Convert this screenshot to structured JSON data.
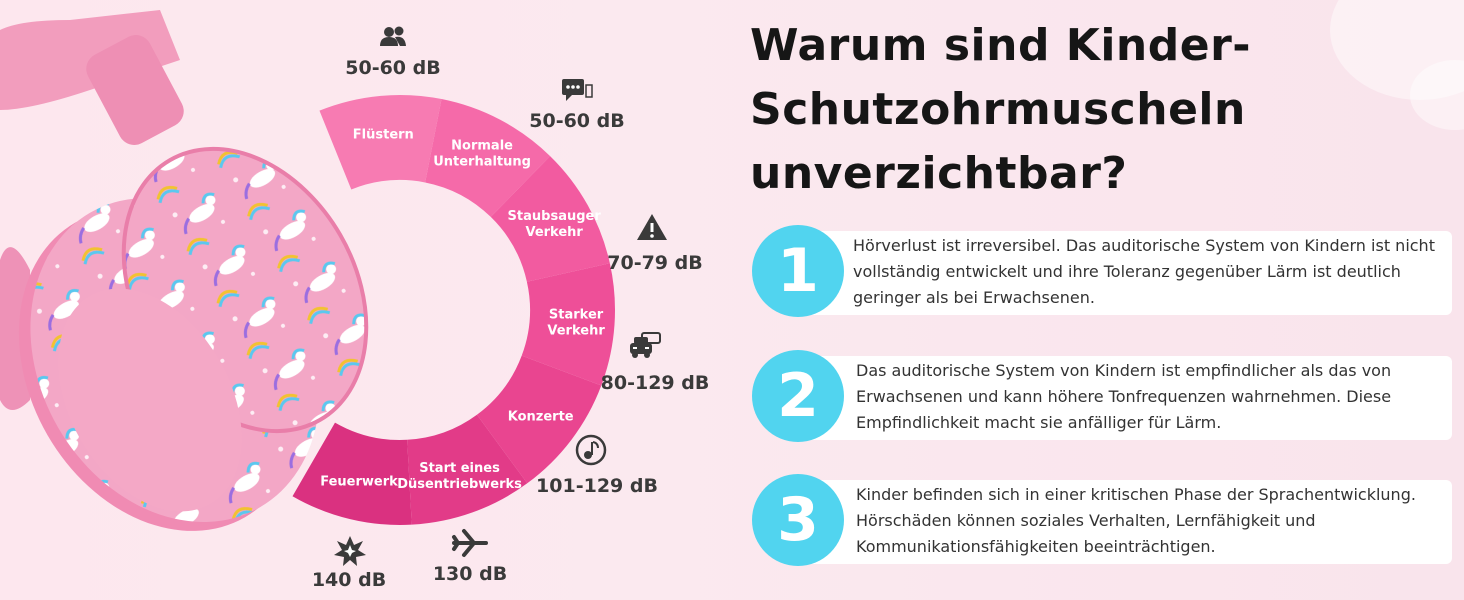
{
  "headline": {
    "line1": "Warum sind Kinder-",
    "line2": "Schutzohrmuscheln",
    "line3": "unverzichtbar?"
  },
  "points": [
    {
      "number": "1",
      "text": "Hörverlust ist irreversibel. Das auditorische System von Kindern ist nicht vollständig entwickelt und ihre Toleranz gegenüber Lärm ist deutlich geringer als bei Erwachsenen."
    },
    {
      "number": "2",
      "text": "Das auditorische System von Kindern ist empfindlicher als das von Erwachsenen und kann höhere Tonfrequenzen wahrnehmen. Diese Empfindlichkeit macht sie anfälliger für Lärm."
    },
    {
      "number": "3",
      "text": "Kinder befinden sich in einer kritischen Phase der Sprachentwicklung. Hörschäden können soziales Verhalten, Lernfähigkeit und Kommunikationsfähigkeiten beeinträchtigen."
    }
  ],
  "noise_scale": [
    {
      "label_lines": [
        "Flüstern"
      ],
      "db": "50-60 dB",
      "icon": "people-icon",
      "color": "#f77bb2"
    },
    {
      "label_lines": [
        "Normale",
        "Unterhaltung"
      ],
      "db": "50-60 dB",
      "icon": "chat-icon",
      "color": "#f56aa9"
    },
    {
      "label_lines": [
        "Staubsauger",
        "Verkehr"
      ],
      "db": "70-79 dB",
      "icon": "warning-icon",
      "color": "#f25ba0"
    },
    {
      "label_lines": [
        "Starker",
        "Verkehr"
      ],
      "db": "80-129 dB",
      "icon": "car-icon",
      "color": "#ee4f98"
    },
    {
      "label_lines": [
        "Konzerte"
      ],
      "db": "101-129 dB",
      "icon": "music-icon",
      "color": "#e94590"
    },
    {
      "label_lines": [
        "Start eines",
        "Düsentriebwerks"
      ],
      "db": "130 dB",
      "icon": "airplane-icon",
      "color": "#e23b88"
    },
    {
      "label_lines": [
        "Feuerwerk"
      ],
      "db": "140 dB",
      "icon": "explosion-icon",
      "color": "#da3180"
    }
  ],
  "colors": {
    "badge": "#51d4ef",
    "headline_text": "#161616",
    "body_text": "#333333"
  }
}
